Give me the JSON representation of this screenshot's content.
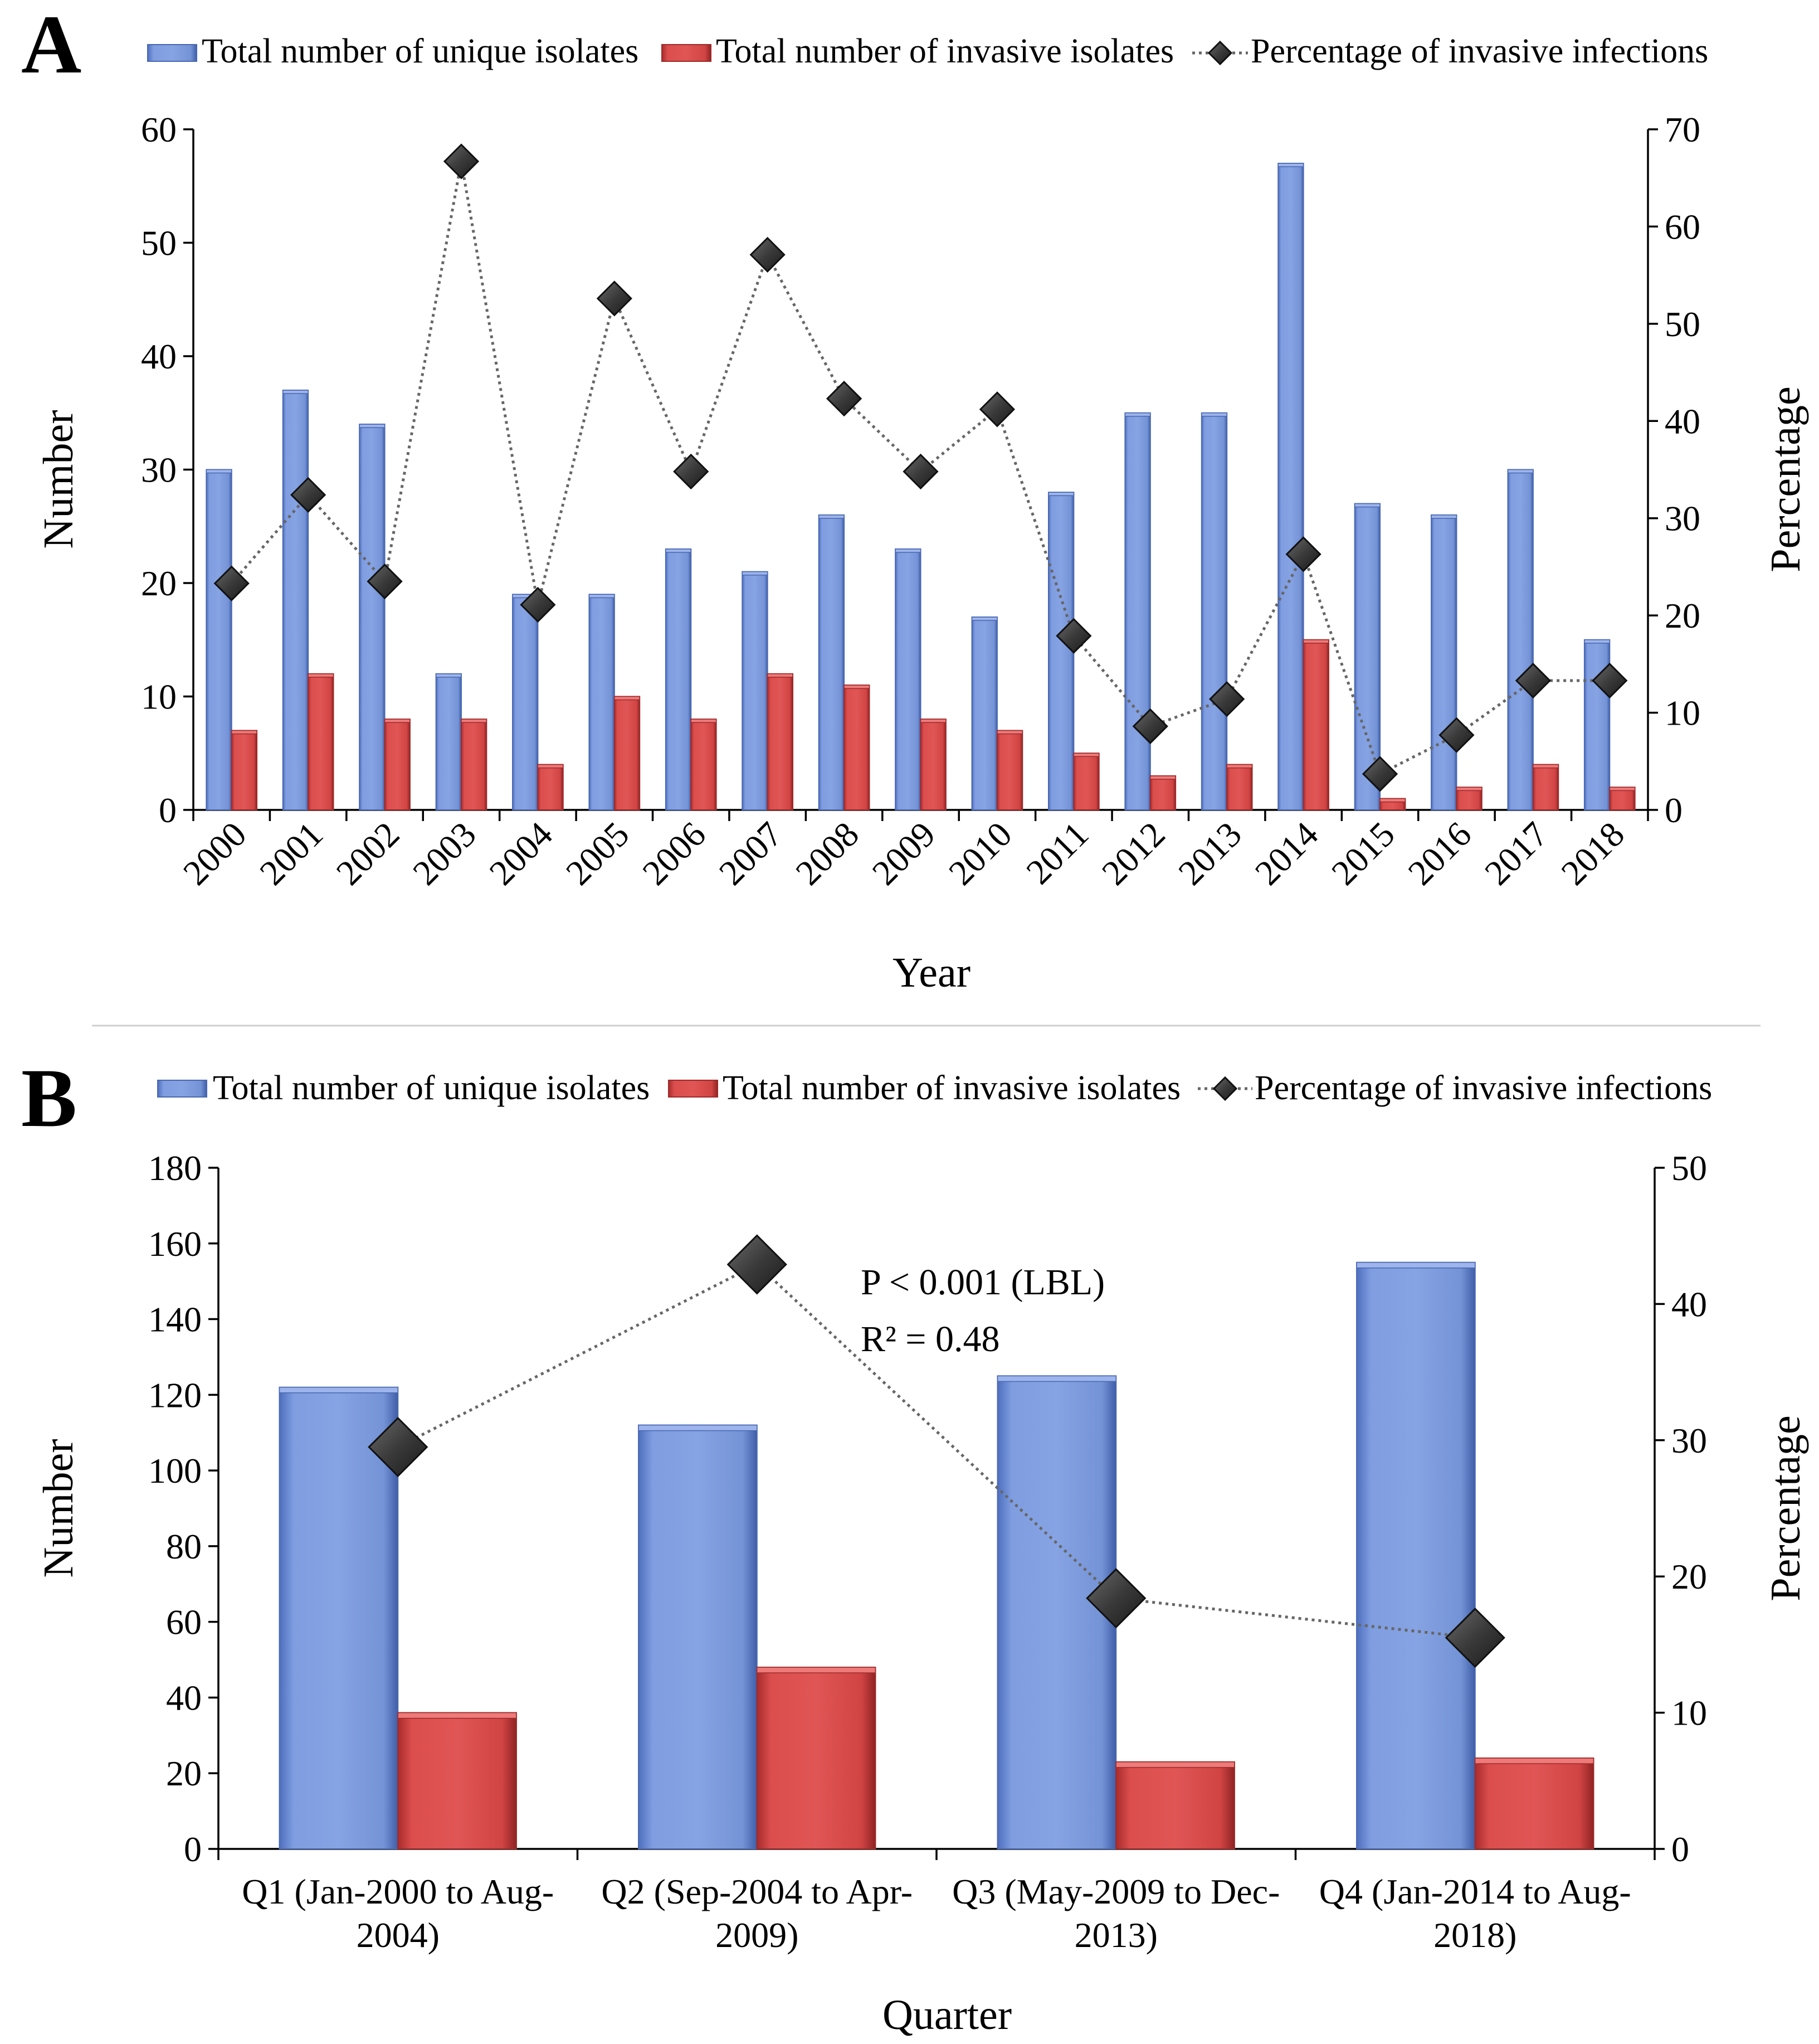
{
  "colors": {
    "unique": "#6f8fd8",
    "unique_edge": "#4a68b0",
    "invasive": "#d64545",
    "invasive_edge": "#9e2a2a",
    "marker": "#3a3a3a",
    "line": "#666666"
  },
  "chart_data": [
    {
      "panel": "A",
      "type": "bar",
      "legend": [
        "Total number of unique isolates",
        "Total number of invasive isolates",
        "Percentage of invasive infections"
      ],
      "xlabel": "Year",
      "ylabel": "Number",
      "ylabel_right": "Percentage",
      "ylim": [
        0,
        60
      ],
      "yticks": [
        0,
        10,
        20,
        30,
        40,
        50,
        60
      ],
      "ylim_right": [
        0,
        70
      ],
      "yticks_right": [
        0,
        10,
        20,
        30,
        40,
        50,
        60,
        70
      ],
      "categories": [
        "2000",
        "2001",
        "2002",
        "2003",
        "2004",
        "2005",
        "2006",
        "2007",
        "2008",
        "2009",
        "2010",
        "2011",
        "2012",
        "2013",
        "2014",
        "2015",
        "2016",
        "2017",
        "2018"
      ],
      "series": [
        {
          "name": "Total number of unique isolates",
          "axis": "left",
          "kind": "bar",
          "values": [
            30,
            37,
            34,
            12,
            19,
            19,
            23,
            21,
            26,
            23,
            17,
            28,
            35,
            35,
            57,
            27,
            26,
            30,
            15
          ]
        },
        {
          "name": "Total number of invasive isolates",
          "axis": "left",
          "kind": "bar",
          "values": [
            7,
            12,
            8,
            8,
            4,
            10,
            8,
            12,
            11,
            8,
            7,
            5,
            3,
            4,
            15,
            1,
            2,
            4,
            2
          ]
        },
        {
          "name": "Percentage of invasive infections",
          "axis": "right",
          "kind": "line",
          "values": [
            23.3,
            32.4,
            23.5,
            66.7,
            21.1,
            52.6,
            34.8,
            57.1,
            42.3,
            34.8,
            41.2,
            17.9,
            8.6,
            11.4,
            26.3,
            3.7,
            7.7,
            13.3,
            13.3
          ]
        }
      ]
    },
    {
      "panel": "B",
      "type": "bar",
      "legend": [
        "Total number of unique isolates",
        "Total number of invasive isolates",
        "Percentage of invasive infections"
      ],
      "xlabel": "Quarter",
      "ylabel": "Number",
      "ylabel_right": "Percentage",
      "ylim": [
        0,
        180
      ],
      "yticks": [
        0,
        20,
        40,
        60,
        80,
        100,
        120,
        140,
        160,
        180
      ],
      "ylim_right": [
        0,
        50
      ],
      "yticks_right": [
        0,
        10,
        20,
        30,
        40,
        50
      ],
      "categories": [
        [
          "Q1 (Jan-2000 to Aug-",
          "2004)"
        ],
        [
          "Q2 (Sep-2004 to Apr-",
          "2009)"
        ],
        [
          "Q3 (May-2009 to Dec-",
          "2013)"
        ],
        [
          "Q4 (Jan-2014 to Aug-",
          "2018)"
        ]
      ],
      "series": [
        {
          "name": "Total number of unique isolates",
          "axis": "left",
          "kind": "bar",
          "values": [
            122,
            112,
            125,
            155
          ]
        },
        {
          "name": "Total number of invasive isolates",
          "axis": "left",
          "kind": "bar",
          "values": [
            36,
            48,
            23,
            24
          ]
        },
        {
          "name": "Percentage of invasive infections",
          "axis": "right",
          "kind": "line",
          "values": [
            29.5,
            42.9,
            18.4,
            15.5
          ]
        }
      ],
      "annotations": [
        "P < 0.001 (LBL)",
        "R² = 0.48"
      ]
    }
  ]
}
